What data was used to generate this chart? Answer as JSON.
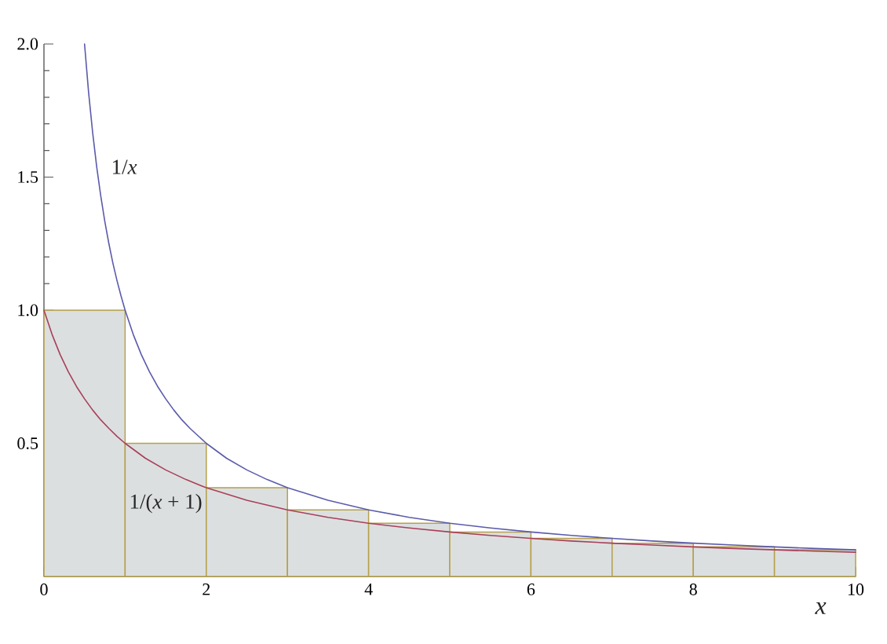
{
  "chart_data": {
    "type": "line",
    "xlabel": "x",
    "xlim": [
      0,
      10
    ],
    "ylim": [
      0,
      2
    ],
    "xticks": [
      0,
      2,
      4,
      6,
      8,
      10
    ],
    "yticks": [
      0.5,
      {
        "value": 1,
        "label": "1.0"
      },
      1.5,
      {
        "value": 2,
        "label": "2.0"
      }
    ],
    "series": [
      {
        "type": "bar",
        "color": "#dcdfe0",
        "x": [
          0.5,
          1.5,
          2.5,
          3.5,
          4.5,
          5.5,
          6.5,
          7.5,
          8.5,
          9.5
        ],
        "values": [
          1,
          0.5,
          0.333,
          0.25,
          0.2,
          0.167,
          0.143,
          0.125,
          0.111,
          0.1
        ]
      },
      {
        "name": "1/*x*",
        "color": "#5b5bab",
        "x": [
          0.5,
          0.55,
          0.6,
          0.65,
          0.7,
          0.75,
          0.8,
          0.85,
          0.9,
          0.95,
          1,
          1.1,
          1.2,
          1.3,
          1.4,
          1.5,
          1.6,
          1.7,
          1.8,
          2,
          2.25,
          2.5,
          2.75,
          3,
          3.5,
          4,
          4.5,
          5,
          5.5,
          6,
          6.5,
          7,
          7.5,
          8,
          8.5,
          9,
          9.5,
          10
        ],
        "values": [
          2,
          1.818,
          1.667,
          1.538,
          1.429,
          1.333,
          1.25,
          1.176,
          1.111,
          1.053,
          1,
          0.909,
          0.833,
          0.769,
          0.714,
          0.667,
          0.625,
          0.588,
          0.556,
          0.5,
          0.444,
          0.4,
          0.364,
          0.333,
          0.286,
          0.25,
          0.222,
          0.2,
          0.182,
          0.167,
          0.154,
          0.143,
          0.133,
          0.125,
          0.118,
          0.111,
          0.105,
          0.1
        ]
      },
      {
        "name": "1/(*x* + 1)",
        "color": "#a8405a",
        "x": [
          0,
          0.1,
          0.2,
          0.3,
          0.4,
          0.5,
          0.6,
          0.7,
          0.8,
          0.9,
          1,
          1.25,
          1.5,
          1.75,
          2,
          2.5,
          3,
          3.5,
          4,
          4.5,
          5,
          5.5,
          6,
          6.5,
          7,
          7.5,
          8,
          8.5,
          9,
          9.5,
          10
        ],
        "values": [
          1,
          0.909,
          0.833,
          0.769,
          0.714,
          0.667,
          0.625,
          0.588,
          0.556,
          0.526,
          0.5,
          0.444,
          0.4,
          0.364,
          0.333,
          0.286,
          0.25,
          0.222,
          0.2,
          0.182,
          0.167,
          0.154,
          0.143,
          0.133,
          0.125,
          0.118,
          0.111,
          0.105,
          0.1,
          0.095,
          0.091
        ]
      }
    ]
  }
}
